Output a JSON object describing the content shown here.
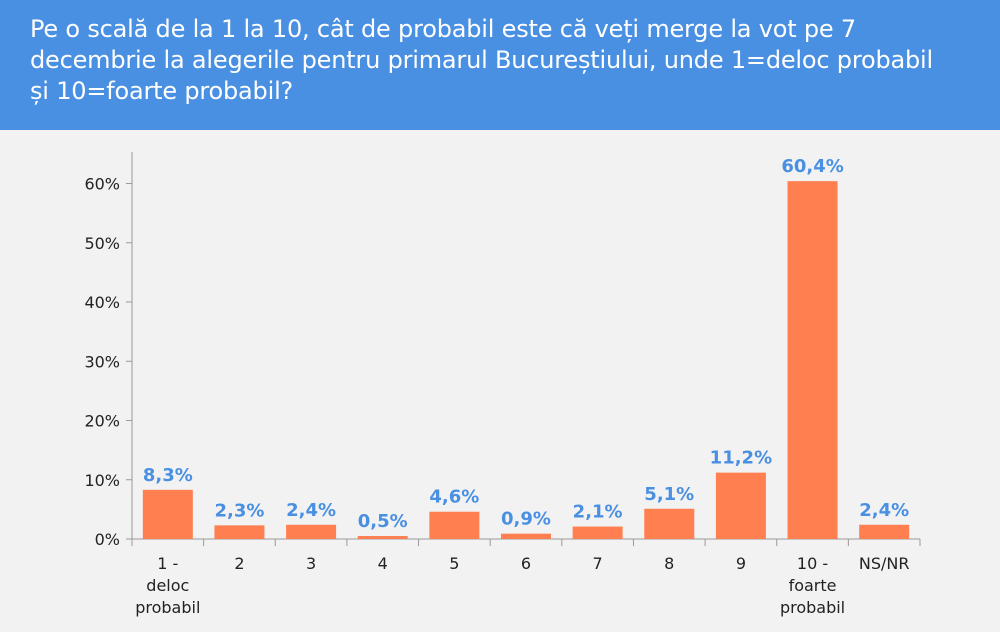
{
  "header": {
    "question": "Pe o scală de la 1 la 10, cât de probabil este că veți merge la vot pe 7 decembrie la alegerile pentru primarul Bucureștiului, unde 1=deloc probabil și 10=foarte probabil?"
  },
  "colors": {
    "header_bg": "#4a90e2",
    "background": "#f2f2f2",
    "bar": "#ff7f50",
    "data_label": "#4a90e2",
    "axis_text": "#222222"
  },
  "chart_data": {
    "type": "bar",
    "title": "",
    "xlabel": "",
    "ylabel": "",
    "categories": [
      [
        "1 -",
        "deloc",
        "probabil"
      ],
      [
        "2"
      ],
      [
        "3"
      ],
      [
        "4"
      ],
      [
        "5"
      ],
      [
        "6"
      ],
      [
        "7"
      ],
      [
        "8"
      ],
      [
        "9"
      ],
      [
        "10 -",
        "foarte",
        "probabil"
      ],
      [
        "NS/NR"
      ]
    ],
    "values": [
      8.3,
      2.3,
      2.4,
      0.5,
      4.6,
      0.9,
      2.1,
      5.1,
      11.2,
      60.4,
      2.4
    ],
    "value_labels": [
      "8,3%",
      "2,3%",
      "2,4%",
      "0,5%",
      "4,6%",
      "0,9%",
      "2,1%",
      "5,1%",
      "11,2%",
      "60,4%",
      "2,4%"
    ],
    "ylim": [
      0,
      65
    ],
    "y_ticks": [
      0,
      10,
      20,
      30,
      40,
      50,
      60
    ],
    "y_tick_labels": [
      "0%",
      "10%",
      "20%",
      "30%",
      "40%",
      "50%",
      "60%"
    ],
    "grid": false,
    "legend": "none"
  }
}
